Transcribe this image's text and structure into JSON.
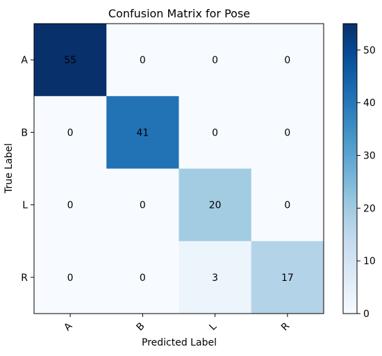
{
  "chart_data": {
    "type": "heatmap",
    "title": "Confusion Matrix for Pose",
    "xlabel": "Predicted Label",
    "ylabel": "True Label",
    "x_categories": [
      "A",
      "B",
      "L",
      "R"
    ],
    "y_categories": [
      "A",
      "B",
      "L",
      "R"
    ],
    "values": [
      [
        55,
        0,
        0,
        0
      ],
      [
        0,
        41,
        0,
        0
      ],
      [
        0,
        0,
        20,
        0
      ],
      [
        0,
        0,
        3,
        17
      ]
    ],
    "colormap": "Blues",
    "vmin": 0,
    "vmax": 55,
    "colorbar_ticks": [
      0,
      10,
      20,
      30,
      40,
      50
    ],
    "x_tick_rotation": 45
  }
}
